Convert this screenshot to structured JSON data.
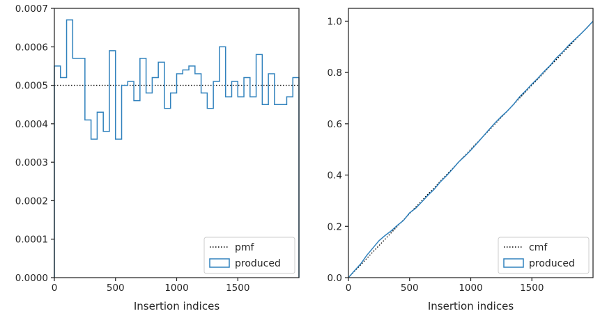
{
  "colors": {
    "produced": "#3182bd",
    "reference": "#000000",
    "axes": "#262626",
    "legend_border": "#cccccc"
  },
  "chart_data": [
    {
      "type": "line",
      "panel": "left",
      "title": "",
      "xlabel": "Insertion indices",
      "ylabel": "",
      "xlim": [
        0,
        2000
      ],
      "ylim": [
        0,
        0.0007
      ],
      "xticks": [
        0,
        500,
        1000,
        1500
      ],
      "xtick_labels": [
        "0",
        "500",
        "1000",
        "1500"
      ],
      "yticks": [
        0,
        0.0001,
        0.0002,
        0.0003,
        0.0004,
        0.0005,
        0.0006,
        0.0007
      ],
      "ytick_labels": [
        "0.0000",
        "0.0001",
        "0.0002",
        "0.0003",
        "0.0004",
        "0.0005",
        "0.0006",
        "0.0007"
      ],
      "grid": false,
      "legend_position": "lower right",
      "series": [
        {
          "name": "pmf",
          "style": "dotted",
          "color": "#000000",
          "x": [
            0,
            2000
          ],
          "y": [
            0.0005,
            0.0005
          ]
        },
        {
          "name": "produced",
          "style": "step-histogram",
          "color": "#3182bd",
          "bin_edges": [
            0,
            50,
            100,
            150,
            200,
            250,
            300,
            350,
            400,
            450,
            500,
            550,
            600,
            650,
            700,
            750,
            800,
            850,
            900,
            950,
            1000,
            1050,
            1100,
            1150,
            1200,
            1250,
            1300,
            1350,
            1400,
            1450,
            1500,
            1550,
            1600,
            1650,
            1700,
            1750,
            1800,
            1850,
            1900,
            1950,
            2000
          ],
          "values": [
            0.00055,
            0.00052,
            0.00067,
            0.00057,
            0.00057,
            0.00041,
            0.00036,
            0.00043,
            0.00038,
            0.00059,
            0.00036,
            0.0005,
            0.00051,
            0.00046,
            0.00057,
            0.00048,
            0.00052,
            0.00056,
            0.00044,
            0.00048,
            0.00053,
            0.00054,
            0.00055,
            0.00053,
            0.00048,
            0.00044,
            0.00051,
            0.0006,
            0.00047,
            0.00051,
            0.00047,
            0.00052,
            0.00047,
            0.00058,
            0.00045,
            0.00053,
            0.00045,
            0.00045,
            0.00047,
            0.00052
          ]
        }
      ]
    },
    {
      "type": "line",
      "panel": "right",
      "title": "",
      "xlabel": "Insertion indices",
      "ylabel": "",
      "xlim": [
        0,
        2000
      ],
      "ylim": [
        0,
        1.05
      ],
      "xticks": [
        0,
        500,
        1000,
        1500
      ],
      "xtick_labels": [
        "0",
        "500",
        "1000",
        "1500"
      ],
      "yticks": [
        0,
        0.2,
        0.4,
        0.6,
        0.8,
        1.0
      ],
      "ytick_labels": [
        "0.0",
        "0.2",
        "0.4",
        "0.6",
        "0.8",
        "1.0"
      ],
      "grid": false,
      "legend_position": "lower right",
      "series": [
        {
          "name": "cmf",
          "style": "dotted",
          "color": "#000000",
          "x": [
            0,
            2000
          ],
          "y": [
            0,
            1
          ]
        },
        {
          "name": "produced",
          "style": "solid",
          "color": "#3182bd",
          "x": [
            0,
            50,
            100,
            150,
            200,
            250,
            300,
            350,
            400,
            450,
            500,
            550,
            600,
            650,
            700,
            750,
            800,
            850,
            900,
            950,
            1000,
            1050,
            1100,
            1150,
            1200,
            1250,
            1300,
            1350,
            1400,
            1450,
            1500,
            1550,
            1600,
            1650,
            1700,
            1750,
            1800,
            1850,
            1900,
            1950,
            2000
          ],
          "y": [
            0,
            0.0275,
            0.0535,
            0.087,
            0.1155,
            0.144,
            0.1645,
            0.1825,
            0.204,
            0.223,
            0.2525,
            0.2705,
            0.2955,
            0.321,
            0.344,
            0.3725,
            0.3965,
            0.4225,
            0.4505,
            0.4725,
            0.4965,
            0.523,
            0.55,
            0.5775,
            0.604,
            0.628,
            0.65,
            0.6755,
            0.7055,
            0.729,
            0.7545,
            0.778,
            0.804,
            0.8275,
            0.8565,
            0.879,
            0.9055,
            0.928,
            0.9505,
            0.974,
            1.0
          ]
        }
      ]
    }
  ]
}
